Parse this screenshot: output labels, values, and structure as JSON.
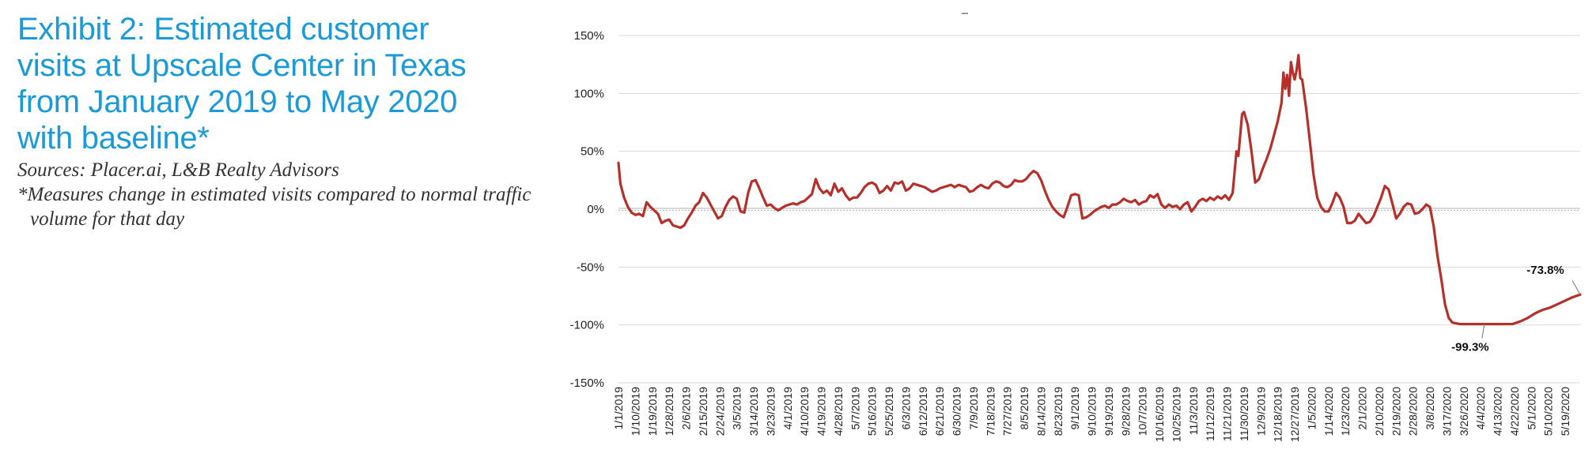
{
  "header": {
    "title": "Exhibit 2: Estimated customer visits at Upscale Center in Texas from January 2019 to May 2020 with baseline*",
    "sources": "Sources: Placer.ai, L&B Realty Advisors",
    "footnote": "*Measures change in estimated visits compared to normal traffic volume for that day"
  },
  "colors": {
    "title": "#1a9ad6",
    "series": "#b5302a",
    "grid": "#d9d9d9",
    "baseline": "#b0b0b0"
  },
  "chart_data": {
    "type": "line",
    "title": "",
    "xlabel": "",
    "ylabel": "",
    "ylim": [
      -150,
      150
    ],
    "y_ticks": [
      150,
      100,
      50,
      0,
      -50,
      -100,
      -150
    ],
    "y_tick_labels": [
      "150%",
      "100%",
      "50%",
      "0%",
      "-50%",
      "-100%",
      "-150%"
    ],
    "grid": true,
    "legend": "none",
    "x_tick_labels": [
      "1/1/2019",
      "1/10/2019",
      "1/19/2019",
      "1/28/2019",
      "2/6/2019",
      "2/15/2019",
      "2/24/2019",
      "3/5/2019",
      "3/14/2019",
      "3/23/2019",
      "4/1/2019",
      "4/10/2019",
      "4/19/2019",
      "4/28/2019",
      "5/7/2019",
      "5/16/2019",
      "5/25/2019",
      "6/3/2019",
      "6/12/2019",
      "6/21/2019",
      "6/30/2019",
      "7/9/2019",
      "7/18/2019",
      "7/27/2019",
      "8/5/2019",
      "8/14/2019",
      "8/23/2019",
      "9/1/2019",
      "9/10/2019",
      "9/19/2019",
      "9/28/2019",
      "10/7/2019",
      "10/16/2019",
      "10/25/2019",
      "11/3/2019",
      "11/12/2019",
      "11/21/2019",
      "11/30/2019",
      "12/9/2019",
      "12/18/2019",
      "12/27/2019",
      "1/5/2020",
      "1/14/2020",
      "1/23/2020",
      "2/1/2020",
      "2/10/2020",
      "2/19/2020",
      "2/28/2020",
      "3/8/2020",
      "3/17/2020",
      "3/26/2020",
      "4/4/2020",
      "4/13/2020",
      "4/22/2020",
      "5/1/2020",
      "5/10/2020",
      "5/19/2020"
    ],
    "series": [
      {
        "points": [
          [
            "1/1/2019",
            40
          ],
          [
            "1/2/2019",
            22
          ],
          [
            "1/4/2019",
            10
          ],
          [
            "1/6/2019",
            2
          ],
          [
            "1/8/2019",
            -3
          ],
          [
            "1/10/2019",
            -5
          ],
          [
            "1/12/2019",
            -4
          ],
          [
            "1/14/2019",
            -6
          ],
          [
            "1/16/2019",
            6
          ],
          [
            "1/18/2019",
            2
          ],
          [
            "1/20/2019",
            -1
          ],
          [
            "1/22/2019",
            -4
          ],
          [
            "1/24/2019",
            -12
          ],
          [
            "1/26/2019",
            -10
          ],
          [
            "1/28/2019",
            -9
          ],
          [
            "1/30/2019",
            -14
          ],
          [
            "2/1/2019",
            -15
          ],
          [
            "2/3/2019",
            -16
          ],
          [
            "2/5/2019",
            -14
          ],
          [
            "2/7/2019",
            -8
          ],
          [
            "2/9/2019",
            -3
          ],
          [
            "2/11/2019",
            3
          ],
          [
            "2/13/2019",
            6
          ],
          [
            "2/15/2019",
            14
          ],
          [
            "2/17/2019",
            10
          ],
          [
            "2/19/2019",
            4
          ],
          [
            "2/21/2019",
            -2
          ],
          [
            "2/23/2019",
            -8
          ],
          [
            "2/25/2019",
            -6
          ],
          [
            "2/27/2019",
            2
          ],
          [
            "3/1/2019",
            8
          ],
          [
            "3/3/2019",
            11
          ],
          [
            "3/5/2019",
            9
          ],
          [
            "3/7/2019",
            -2
          ],
          [
            "3/9/2019",
            -3
          ],
          [
            "3/11/2019",
            14
          ],
          [
            "3/13/2019",
            24
          ],
          [
            "3/15/2019",
            25
          ],
          [
            "3/17/2019",
            18
          ],
          [
            "3/19/2019",
            10
          ],
          [
            "3/21/2019",
            3
          ],
          [
            "3/23/2019",
            4
          ],
          [
            "3/25/2019",
            1
          ],
          [
            "3/27/2019",
            -1
          ],
          [
            "3/29/2019",
            1
          ],
          [
            "3/31/2019",
            3
          ],
          [
            "4/2/2019",
            4
          ],
          [
            "4/4/2019",
            5
          ],
          [
            "4/6/2019",
            4
          ],
          [
            "4/8/2019",
            6
          ],
          [
            "4/10/2019",
            7
          ],
          [
            "4/12/2019",
            10
          ],
          [
            "4/14/2019",
            13
          ],
          [
            "4/16/2019",
            26
          ],
          [
            "4/18/2019",
            18
          ],
          [
            "4/20/2019",
            14
          ],
          [
            "4/22/2019",
            16
          ],
          [
            "4/24/2019",
            12
          ],
          [
            "4/26/2019",
            22
          ],
          [
            "4/28/2019",
            15
          ],
          [
            "4/30/2019",
            18
          ],
          [
            "5/2/2019",
            12
          ],
          [
            "5/4/2019",
            8
          ],
          [
            "5/6/2019",
            10
          ],
          [
            "5/8/2019",
            10
          ],
          [
            "5/10/2019",
            14
          ],
          [
            "5/12/2019",
            19
          ],
          [
            "5/14/2019",
            22
          ],
          [
            "5/16/2019",
            23
          ],
          [
            "5/18/2019",
            21
          ],
          [
            "5/20/2019",
            14
          ],
          [
            "5/22/2019",
            16
          ],
          [
            "5/24/2019",
            20
          ],
          [
            "5/26/2019",
            16
          ],
          [
            "5/28/2019",
            23
          ],
          [
            "5/30/2019",
            22
          ],
          [
            "6/1/2019",
            24
          ],
          [
            "6/3/2019",
            16
          ],
          [
            "6/5/2019",
            18
          ],
          [
            "6/7/2019",
            22
          ],
          [
            "6/9/2019",
            21
          ],
          [
            "6/11/2019",
            20
          ],
          [
            "6/13/2019",
            19
          ],
          [
            "6/15/2019",
            17
          ],
          [
            "6/17/2019",
            15
          ],
          [
            "6/19/2019",
            16
          ],
          [
            "6/21/2019",
            18
          ],
          [
            "6/23/2019",
            19
          ],
          [
            "6/25/2019",
            20
          ],
          [
            "6/27/2019",
            21
          ],
          [
            "6/29/2019",
            19
          ],
          [
            "7/1/2019",
            21
          ],
          [
            "7/3/2019",
            20
          ],
          [
            "7/5/2019",
            19
          ],
          [
            "7/7/2019",
            15
          ],
          [
            "7/9/2019",
            16
          ],
          [
            "7/11/2019",
            19
          ],
          [
            "7/13/2019",
            21
          ],
          [
            "7/15/2019",
            19
          ],
          [
            "7/17/2019",
            18
          ],
          [
            "7/19/2019",
            22
          ],
          [
            "7/21/2019",
            24
          ],
          [
            "7/23/2019",
            23
          ],
          [
            "7/25/2019",
            20
          ],
          [
            "7/27/2019",
            19
          ],
          [
            "7/29/2019",
            21
          ],
          [
            "7/31/2019",
            25
          ],
          [
            "8/2/2019",
            24
          ],
          [
            "8/4/2019",
            24
          ],
          [
            "8/6/2019",
            26
          ],
          [
            "8/8/2019",
            30
          ],
          [
            "8/10/2019",
            33
          ],
          [
            "8/12/2019",
            31
          ],
          [
            "8/14/2019",
            25
          ],
          [
            "8/16/2019",
            16
          ],
          [
            "8/18/2019",
            8
          ],
          [
            "8/20/2019",
            2
          ],
          [
            "8/22/2019",
            -2
          ],
          [
            "8/24/2019",
            -5
          ],
          [
            "8/26/2019",
            -7
          ],
          [
            "8/28/2019",
            2
          ],
          [
            "8/30/2019",
            12
          ],
          [
            "9/1/2019",
            13
          ],
          [
            "9/3/2019",
            12
          ],
          [
            "9/5/2019",
            -8
          ],
          [
            "9/7/2019",
            -7
          ],
          [
            "9/9/2019",
            -5
          ],
          [
            "9/11/2019",
            -2
          ],
          [
            "9/13/2019",
            0
          ],
          [
            "9/15/2019",
            2
          ],
          [
            "9/17/2019",
            3
          ],
          [
            "9/19/2019",
            1
          ],
          [
            "9/21/2019",
            4
          ],
          [
            "9/23/2019",
            4
          ],
          [
            "9/25/2019",
            6
          ],
          [
            "9/27/2019",
            9
          ],
          [
            "9/29/2019",
            7
          ],
          [
            "10/1/2019",
            6
          ],
          [
            "10/3/2019",
            8
          ],
          [
            "10/5/2019",
            4
          ],
          [
            "10/7/2019",
            6
          ],
          [
            "10/9/2019",
            7
          ],
          [
            "10/11/2019",
            12
          ],
          [
            "10/13/2019",
            10
          ],
          [
            "10/15/2019",
            13
          ],
          [
            "10/17/2019",
            4
          ],
          [
            "10/19/2019",
            1
          ],
          [
            "10/21/2019",
            4
          ],
          [
            "10/23/2019",
            2
          ],
          [
            "10/25/2019",
            3
          ],
          [
            "10/27/2019",
            0
          ],
          [
            "10/29/2019",
            4
          ],
          [
            "10/31/2019",
            6
          ],
          [
            "11/2/2019",
            -2
          ],
          [
            "11/4/2019",
            2
          ],
          [
            "11/6/2019",
            7
          ],
          [
            "11/8/2019",
            9
          ],
          [
            "11/10/2019",
            7
          ],
          [
            "11/12/2019",
            10
          ],
          [
            "11/14/2019",
            8
          ],
          [
            "11/16/2019",
            11
          ],
          [
            "11/18/2019",
            9
          ],
          [
            "11/20/2019",
            12
          ],
          [
            "11/22/2019",
            8
          ],
          [
            "11/24/2019",
            14
          ],
          [
            "11/26/2019",
            50
          ],
          [
            "11/27/2019",
            46
          ],
          [
            "11/29/2019",
            82
          ],
          [
            "11/30/2019",
            84
          ],
          [
            "12/2/2019",
            73
          ],
          [
            "12/4/2019",
            50
          ],
          [
            "12/6/2019",
            23
          ],
          [
            "12/8/2019",
            26
          ],
          [
            "12/10/2019",
            35
          ],
          [
            "12/12/2019",
            43
          ],
          [
            "12/14/2019",
            52
          ],
          [
            "12/16/2019",
            64
          ],
          [
            "12/18/2019",
            76
          ],
          [
            "12/20/2019",
            92
          ],
          [
            "12/21/2019",
            118
          ],
          [
            "12/22/2019",
            104
          ],
          [
            "12/23/2019",
            116
          ],
          [
            "12/24/2019",
            98
          ],
          [
            "12/25/2019",
            127
          ],
          [
            "12/26/2019",
            118
          ],
          [
            "12/27/2019",
            112
          ],
          [
            "12/28/2019",
            120
          ],
          [
            "12/29/2019",
            133
          ],
          [
            "12/30/2019",
            113
          ],
          [
            "12/31/2019",
            112
          ],
          [
            "1/2/2020",
            88
          ],
          [
            "1/4/2020",
            60
          ],
          [
            "1/6/2020",
            30
          ],
          [
            "1/8/2020",
            10
          ],
          [
            "1/10/2020",
            2
          ],
          [
            "1/12/2020",
            -2
          ],
          [
            "1/14/2020",
            -2
          ],
          [
            "1/16/2020",
            5
          ],
          [
            "1/18/2020",
            14
          ],
          [
            "1/20/2020",
            10
          ],
          [
            "1/22/2020",
            2
          ],
          [
            "1/24/2020",
            -12
          ],
          [
            "1/26/2020",
            -12
          ],
          [
            "1/28/2020",
            -10
          ],
          [
            "1/30/2020",
            -4
          ],
          [
            "2/1/2020",
            -8
          ],
          [
            "2/3/2020",
            -12
          ],
          [
            "2/5/2020",
            -11
          ],
          [
            "2/7/2020",
            -6
          ],
          [
            "2/9/2020",
            2
          ],
          [
            "2/11/2020",
            10
          ],
          [
            "2/13/2020",
            20
          ],
          [
            "2/15/2020",
            17
          ],
          [
            "2/17/2020",
            5
          ],
          [
            "2/19/2020",
            -8
          ],
          [
            "2/21/2020",
            -4
          ],
          [
            "2/23/2020",
            2
          ],
          [
            "2/25/2020",
            5
          ],
          [
            "2/27/2020",
            4
          ],
          [
            "2/29/2020",
            -4
          ],
          [
            "3/2/2020",
            -3
          ],
          [
            "3/4/2020",
            0
          ],
          [
            "3/6/2020",
            4
          ],
          [
            "3/8/2020",
            2
          ],
          [
            "3/10/2020",
            -15
          ],
          [
            "3/12/2020",
            -40
          ],
          [
            "3/14/2020",
            -60
          ],
          [
            "3/16/2020",
            -82
          ],
          [
            "3/18/2020",
            -94
          ],
          [
            "3/20/2020",
            -98
          ],
          [
            "3/24/2020",
            -99.3
          ],
          [
            "3/31/2020",
            -99.3
          ],
          [
            "4/7/2020",
            -99.3
          ],
          [
            "4/14/2020",
            -99.3
          ],
          [
            "4/21/2020",
            -99.2
          ],
          [
            "4/25/2020",
            -97
          ],
          [
            "4/29/2020",
            -94
          ],
          [
            "5/3/2020",
            -90
          ],
          [
            "5/7/2020",
            -87
          ],
          [
            "5/11/2020",
            -85
          ],
          [
            "5/15/2020",
            -82
          ],
          [
            "5/19/2020",
            -79
          ],
          [
            "5/23/2020",
            -76
          ],
          [
            "5/27/2020",
            -73.8
          ]
        ]
      }
    ],
    "annotations": [
      {
        "text": "-73.8%",
        "x": "5/27/2020",
        "y": -73.8
      },
      {
        "text": "-99.3%",
        "x": "4/6/2020",
        "y": -99.3
      }
    ]
  }
}
